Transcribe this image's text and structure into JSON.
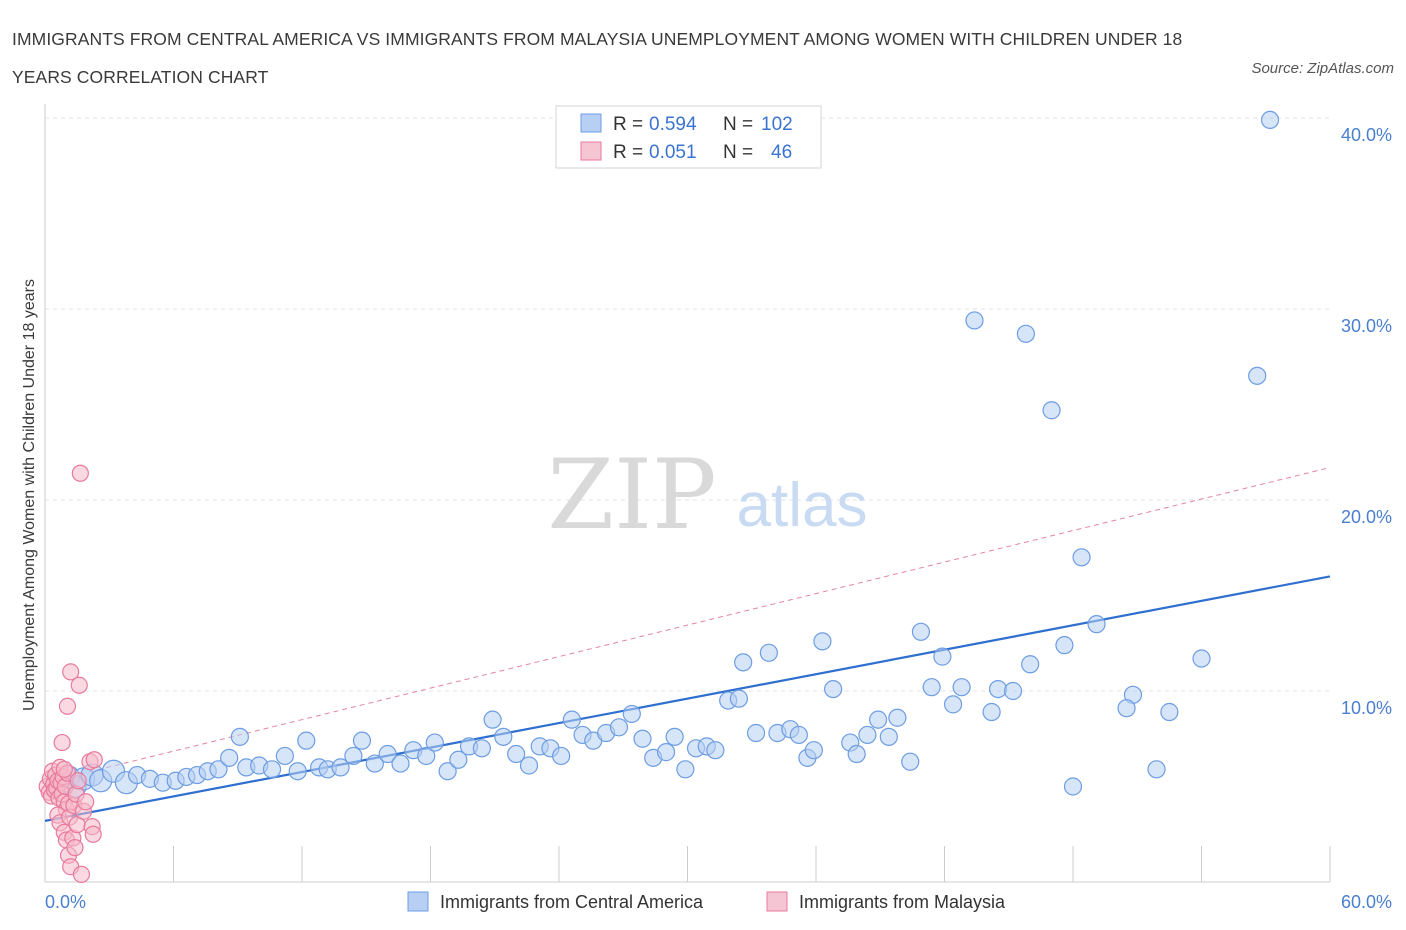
{
  "header": {
    "title": "IMMIGRANTS FROM CENTRAL AMERICA VS IMMIGRANTS FROM MALAYSIA UNEMPLOYMENT AMONG WOMEN WITH CHILDREN UNDER 18 YEARS CORRELATION CHART",
    "source": "Source: ZipAtlas.com"
  },
  "watermark": {
    "zip": "ZIP",
    "atlas": "atlas"
  },
  "colors": {
    "blue": "#6d9de3",
    "blue_fill": "#b7cff3",
    "blue_line": "#2f6fcf",
    "pink": "#e87a9d",
    "pink_fill": "#f6b9cb",
    "pink_line": "#e0708f",
    "axis_text": "#4a7fd0",
    "grid": "#dfe3ea"
  },
  "chart_data": {
    "type": "scatter",
    "title": "IMMIGRANTS FROM CENTRAL AMERICA VS IMMIGRANTS FROM MALAYSIA UNEMPLOYMENT AMONG WOMEN WITH CHILDREN UNDER 18 YEARS CORRELATION CHART",
    "xlabel": "",
    "ylabel": "Unemployment Among Women with Children Under 18 years",
    "xlim": [
      0,
      60
    ],
    "ylim": [
      0,
      40
    ],
    "x_tick_labels": [
      "0.0%",
      "60.0%"
    ],
    "y_tick_labels": [
      "10.0%",
      "20.0%",
      "30.0%",
      "40.0%"
    ],
    "y_ticks": [
      10,
      20,
      30,
      40
    ],
    "grid": true,
    "legend_position": "top-center",
    "stats": [
      {
        "r_label": "R = ",
        "r": "0.594",
        "n_label": "N = ",
        "n": "102"
      },
      {
        "r_label": "R = ",
        "r": "0.051",
        "n_label": "N = ",
        "n": "46"
      }
    ],
    "series": [
      {
        "name": "Immigrants from Central America",
        "color": "#6d9de3",
        "trend": {
          "x": [
            0,
            60
          ],
          "y": [
            3.2,
            16.0
          ],
          "style": "solid"
        },
        "points": [
          [
            0.8,
            5.2
          ],
          [
            1.1,
            5.5
          ],
          [
            1.4,
            5.0
          ],
          [
            1.8,
            5.4
          ],
          [
            2.2,
            5.6
          ],
          [
            2.6,
            5.3
          ],
          [
            3.2,
            5.8
          ],
          [
            3.8,
            5.2
          ],
          [
            4.3,
            5.6
          ],
          [
            4.9,
            5.4
          ],
          [
            5.5,
            5.2
          ],
          [
            6.1,
            5.3
          ],
          [
            6.6,
            5.5
          ],
          [
            7.1,
            5.6
          ],
          [
            7.6,
            5.8
          ],
          [
            8.1,
            5.9
          ],
          [
            8.6,
            6.5
          ],
          [
            9.1,
            7.6
          ],
          [
            9.4,
            6.0
          ],
          [
            10.0,
            6.1
          ],
          [
            10.6,
            5.9
          ],
          [
            11.2,
            6.6
          ],
          [
            11.8,
            5.8
          ],
          [
            12.2,
            7.4
          ],
          [
            12.8,
            6.0
          ],
          [
            13.2,
            5.9
          ],
          [
            13.8,
            6.0
          ],
          [
            14.4,
            6.6
          ],
          [
            14.8,
            7.4
          ],
          [
            15.4,
            6.2
          ],
          [
            16.0,
            6.7
          ],
          [
            16.6,
            6.2
          ],
          [
            17.2,
            6.9
          ],
          [
            17.8,
            6.6
          ],
          [
            18.2,
            7.3
          ],
          [
            18.8,
            5.8
          ],
          [
            19.3,
            6.4
          ],
          [
            19.8,
            7.1
          ],
          [
            20.4,
            7.0
          ],
          [
            20.9,
            8.5
          ],
          [
            21.4,
            7.6
          ],
          [
            22.0,
            6.7
          ],
          [
            22.6,
            6.1
          ],
          [
            23.1,
            7.1
          ],
          [
            23.6,
            7.0
          ],
          [
            24.1,
            6.6
          ],
          [
            24.6,
            8.5
          ],
          [
            25.1,
            7.7
          ],
          [
            25.6,
            7.4
          ],
          [
            26.2,
            7.8
          ],
          [
            26.8,
            8.1
          ],
          [
            27.4,
            8.8
          ],
          [
            27.9,
            7.5
          ],
          [
            28.4,
            6.5
          ],
          [
            29.0,
            6.8
          ],
          [
            29.4,
            7.6
          ],
          [
            29.9,
            5.9
          ],
          [
            30.4,
            7.0
          ],
          [
            30.9,
            7.1
          ],
          [
            31.3,
            6.9
          ],
          [
            31.9,
            9.5
          ],
          [
            32.4,
            9.6
          ],
          [
            32.6,
            11.5
          ],
          [
            33.2,
            7.8
          ],
          [
            33.8,
            12.0
          ],
          [
            34.2,
            7.8
          ],
          [
            34.8,
            8.0
          ],
          [
            35.2,
            7.7
          ],
          [
            35.6,
            6.5
          ],
          [
            35.9,
            6.9
          ],
          [
            36.3,
            12.6
          ],
          [
            36.8,
            10.1
          ],
          [
            37.6,
            7.3
          ],
          [
            37.9,
            6.7
          ],
          [
            38.4,
            7.7
          ],
          [
            38.9,
            8.5
          ],
          [
            39.4,
            7.6
          ],
          [
            39.8,
            8.6
          ],
          [
            40.4,
            6.3
          ],
          [
            40.9,
            13.1
          ],
          [
            41.4,
            10.2
          ],
          [
            41.9,
            11.8
          ],
          [
            42.4,
            9.3
          ],
          [
            42.8,
            10.2
          ],
          [
            43.4,
            29.4
          ],
          [
            44.2,
            8.9
          ],
          [
            44.5,
            10.1
          ],
          [
            45.2,
            10.0
          ],
          [
            45.8,
            28.7
          ],
          [
            46.0,
            11.4
          ],
          [
            47.0,
            24.7
          ],
          [
            47.6,
            12.4
          ],
          [
            48.4,
            17.0
          ],
          [
            48.0,
            5.0
          ],
          [
            49.1,
            13.5
          ],
          [
            50.8,
            9.8
          ],
          [
            50.5,
            9.1
          ],
          [
            51.9,
            5.9
          ],
          [
            52.5,
            8.9
          ],
          [
            54.0,
            11.7
          ],
          [
            56.6,
            26.5
          ],
          [
            57.2,
            39.9
          ]
        ]
      },
      {
        "name": "Immigrants from Malaysia",
        "color": "#e87a9d",
        "trend": {
          "x": [
            0,
            60
          ],
          "y": [
            5.2,
            21.7
          ],
          "style": "dashed"
        },
        "points": [
          [
            0.1,
            5.0
          ],
          [
            0.2,
            4.7
          ],
          [
            0.25,
            5.4
          ],
          [
            0.3,
            4.5
          ],
          [
            0.35,
            5.8
          ],
          [
            0.4,
            5.1
          ],
          [
            0.45,
            4.8
          ],
          [
            0.5,
            5.6
          ],
          [
            0.55,
            4.9
          ],
          [
            0.6,
            5.3
          ],
          [
            0.65,
            4.4
          ],
          [
            0.7,
            6.0
          ],
          [
            0.75,
            5.2
          ],
          [
            0.8,
            4.6
          ],
          [
            0.85,
            5.5
          ],
          [
            0.9,
            4.2
          ],
          [
            0.95,
            5.0
          ],
          [
            1.0,
            3.8
          ],
          [
            1.05,
            5.7
          ],
          [
            1.1,
            4.1
          ],
          [
            0.6,
            3.5
          ],
          [
            0.7,
            3.1
          ],
          [
            0.8,
            7.3
          ],
          [
            0.9,
            2.6
          ],
          [
            1.0,
            2.2
          ],
          [
            1.05,
            9.2
          ],
          [
            1.1,
            1.4
          ],
          [
            1.15,
            3.4
          ],
          [
            1.2,
            0.8
          ],
          [
            1.2,
            11.0
          ],
          [
            1.3,
            2.3
          ],
          [
            1.35,
            4.0
          ],
          [
            1.4,
            1.8
          ],
          [
            1.45,
            4.6
          ],
          [
            1.5,
            3.0
          ],
          [
            1.55,
            5.3
          ],
          [
            1.6,
            10.3
          ],
          [
            1.65,
            21.4
          ],
          [
            1.7,
            0.4
          ],
          [
            1.8,
            3.7
          ],
          [
            1.9,
            4.2
          ],
          [
            2.1,
            6.3
          ],
          [
            2.2,
            2.9
          ],
          [
            2.25,
            2.5
          ],
          [
            2.3,
            6.4
          ],
          [
            0.9,
            5.9
          ]
        ]
      }
    ]
  }
}
